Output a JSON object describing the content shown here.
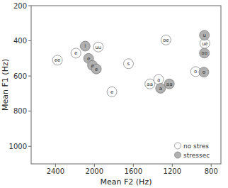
{
  "chart_data": {
    "type": "scatter",
    "xlabel": "Mean F2 (Hz)",
    "ylabel": "Mean F1 (Hz)",
    "xlim": [
      2650,
      700
    ],
    "ylim": [
      1100,
      200
    ],
    "xticks": [
      2400,
      2000,
      1600,
      1200,
      800
    ],
    "yticks": [
      200,
      400,
      600,
      800,
      1000
    ],
    "grid": false,
    "legend": "lower right",
    "series": [
      {
        "name": "no stres",
        "color": "#ffffff",
        "x": [
          2380,
          2190,
          1960,
          1820,
          1650,
          1430,
          1340,
          1265,
          865,
          960
        ],
        "values": [
          510,
          470,
          435,
          690,
          530,
          645,
          620,
          395,
          415,
          575
        ],
        "labels": [
          "ee",
          "e",
          "uu",
          "e",
          "s",
          "aa",
          "a",
          "oe",
          "ue",
          "o"
        ]
      },
      {
        "name": "stressec",
        "color": "#b0b0b0",
        "x": [
          2095,
          2060,
          2020,
          1980,
          1320,
          1230,
          870,
          870,
          875
        ],
        "values": [
          430,
          500,
          540,
          560,
          670,
          645,
          368,
          470,
          578
        ],
        "labels": [
          "i",
          "e",
          "e",
          "e",
          "a",
          "aa",
          "u",
          "oo",
          "o"
        ]
      }
    ]
  }
}
